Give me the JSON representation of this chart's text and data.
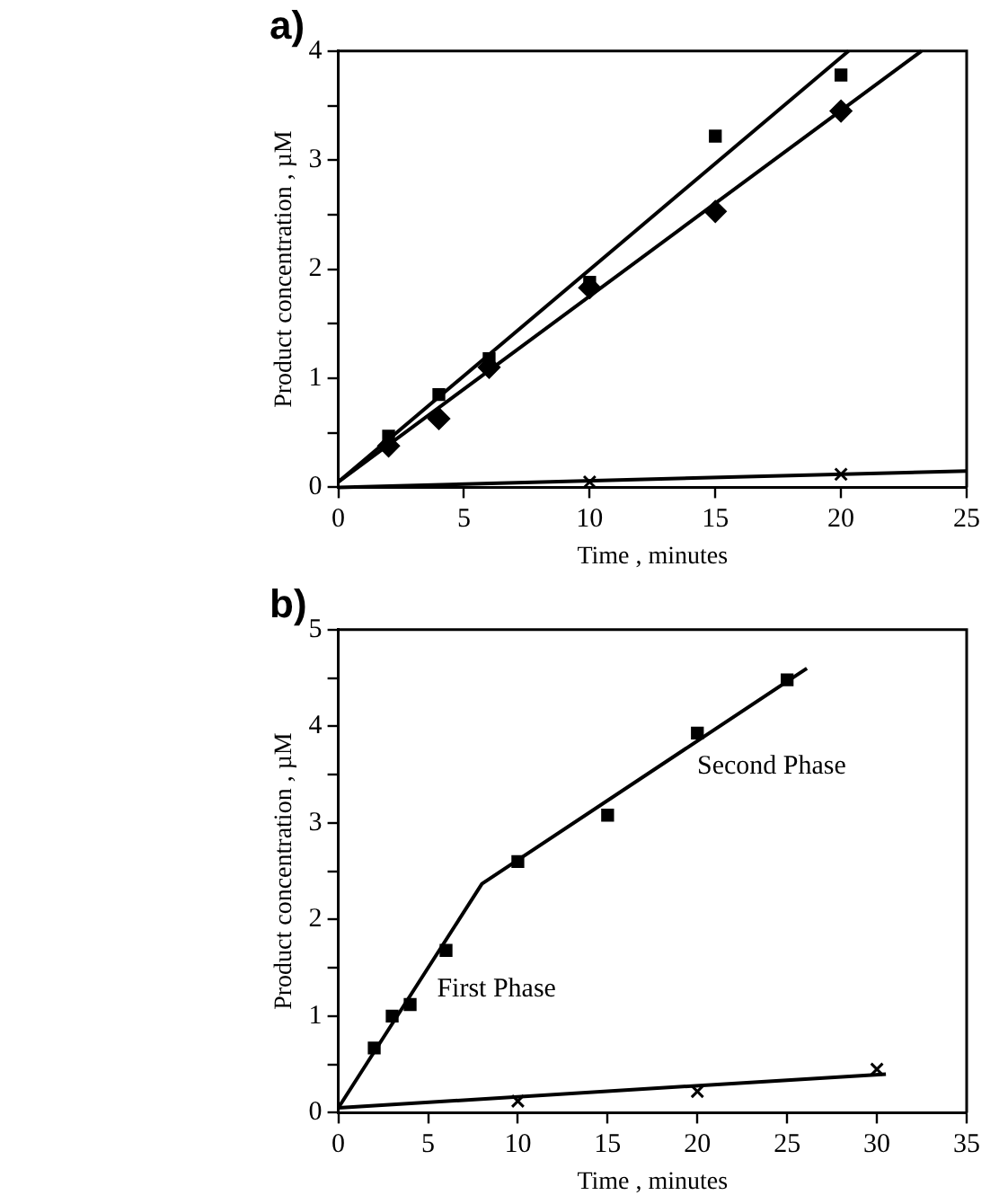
{
  "chart_data": [
    {
      "type": "scatter",
      "title": "a)",
      "xlabel": "Time , minutes",
      "ylabel": "Product concentration , µM",
      "xlim": [
        0,
        25
      ],
      "xticks": [
        0,
        5,
        10,
        15,
        20,
        25
      ],
      "ylim": [
        0,
        4
      ],
      "yticks": [
        0,
        {
          "value": 0.5,
          "label": null
        },
        1,
        {
          "value": 1.5,
          "label": null
        },
        2,
        {
          "value": 2.5,
          "label": null
        },
        3,
        {
          "value": 3.5,
          "label": null
        },
        4
      ],
      "grid": false,
      "legend": false,
      "series": [
        {
          "marker": "square",
          "color": "#000000",
          "x": [
            2,
            4,
            6,
            10,
            15,
            20
          ],
          "values": [
            0.47,
            0.85,
            1.18,
            1.88,
            3.22,
            3.78
          ]
        },
        {
          "marker": "diamond",
          "color": "#000000",
          "x": [
            2,
            4,
            6,
            10,
            15,
            20
          ],
          "values": [
            0.38,
            0.63,
            1.1,
            1.83,
            2.53,
            3.45
          ]
        },
        {
          "marker": "cross",
          "color": "#000000",
          "x": [
            10,
            20
          ],
          "values": [
            0.05,
            0.12
          ]
        },
        {
          "type": "line",
          "marker": "none",
          "color": "#000000",
          "x": [
            0,
            20.3
          ],
          "values": [
            0.05,
            4
          ]
        },
        {
          "type": "line",
          "marker": "none",
          "color": "#000000",
          "x": [
            0,
            23.2
          ],
          "values": [
            0.05,
            4
          ]
        },
        {
          "type": "line",
          "marker": "none",
          "color": "#000000",
          "x": [
            0,
            25
          ],
          "values": [
            0,
            0.15
          ]
        }
      ]
    },
    {
      "type": "scatter",
      "title": "b)",
      "xlabel": "Time , minutes",
      "ylabel": "Product concentration , µM",
      "xlim": [
        0,
        35
      ],
      "xticks": [
        0,
        5,
        10,
        15,
        20,
        25,
        30,
        35
      ],
      "ylim": [
        0,
        5
      ],
      "yticks": [
        0,
        {
          "value": 0.5,
          "label": null
        },
        1,
        {
          "value": 1.5,
          "label": null
        },
        2,
        {
          "value": 2.5,
          "label": null
        },
        3,
        {
          "value": 3.5,
          "label": null
        },
        4,
        {
          "value": 4.5,
          "label": null
        },
        5
      ],
      "grid": false,
      "legend": false,
      "annotations": [
        "First Phase",
        "Second Phase"
      ],
      "series": [
        {
          "marker": "square",
          "color": "#000000",
          "x": [
            2,
            3,
            4,
            6,
            10,
            15,
            20,
            25
          ],
          "values": [
            0.67,
            1.0,
            1.12,
            1.68,
            2.6,
            3.08,
            3.93,
            4.48
          ]
        },
        {
          "marker": "cross",
          "color": "#000000",
          "x": [
            10,
            20,
            30
          ],
          "values": [
            0.12,
            0.22,
            0.45
          ]
        },
        {
          "type": "line",
          "marker": "none",
          "color": "#000000",
          "x": [
            0,
            8,
            26.1
          ],
          "values": [
            0.05,
            2.37,
            4.6
          ]
        },
        {
          "type": "line",
          "marker": "none",
          "color": "#000000",
          "x": [
            0,
            30.5
          ],
          "values": [
            0.05,
            0.4
          ]
        }
      ]
    }
  ]
}
